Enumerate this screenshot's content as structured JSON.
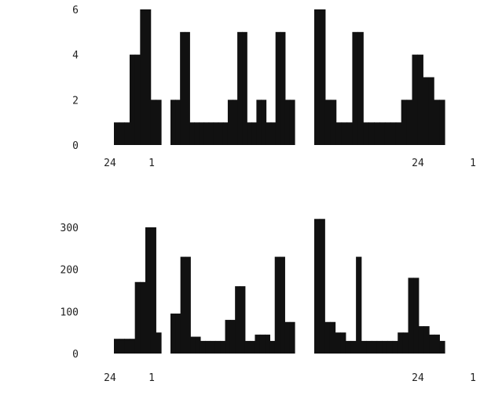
{
  "colors": {
    "bar": "#111111",
    "background": "#ffffff",
    "text": "#222222"
  },
  "chart_data": [
    {
      "type": "bar",
      "title": "",
      "xlabel": "",
      "ylabel": "",
      "ylim": [
        0,
        6
      ],
      "yticks": [
        0,
        1,
        2,
        3,
        4,
        5,
        6
      ],
      "ytick_labels": [
        "0",
        "",
        "2",
        "",
        "4",
        "",
        "6"
      ],
      "groups": [
        {
          "values": [
            1,
            1,
            1,
            4,
            4,
            6,
            6,
            2,
            2
          ]
        },
        {
          "values": [
            2,
            2,
            5,
            5,
            1,
            1,
            1,
            1,
            1,
            1,
            1,
            1,
            2,
            2,
            5,
            5,
            1,
            1,
            2,
            2,
            1,
            1,
            5,
            5,
            2,
            2
          ]
        },
        {
          "values": [
            6,
            6,
            2,
            2,
            1,
            1,
            1,
            5,
            5,
            1,
            1,
            1,
            1,
            1,
            1,
            1,
            2,
            2,
            4,
            4,
            3,
            3,
            2,
            2
          ]
        }
      ],
      "xtick_labels": [
        "24",
        "1",
        "24",
        "1"
      ]
    },
    {
      "type": "bar",
      "title": "",
      "xlabel": "",
      "ylabel": "",
      "ylim": [
        0,
        300
      ],
      "yticks": [
        0,
        100,
        200,
        300
      ],
      "ytick_labels": [
        "0",
        "100",
        "200",
        "300"
      ],
      "groups": [
        {
          "values": [
            35,
            35,
            35,
            35,
            170,
            170,
            300,
            300,
            50
          ]
        },
        {
          "values": [
            95,
            95,
            230,
            230,
            40,
            40,
            30,
            30,
            30,
            30,
            30,
            80,
            80,
            160,
            160,
            30,
            30,
            45,
            45,
            45,
            30,
            230,
            230,
            75,
            75
          ]
        },
        {
          "values": [
            320,
            320,
            75,
            75,
            50,
            50,
            30,
            30,
            230,
            30,
            30,
            30,
            30,
            30,
            30,
            30,
            50,
            50,
            180,
            180,
            65,
            65,
            45,
            45,
            30
          ]
        }
      ],
      "xtick_labels": [
        "24",
        "1",
        "24",
        "1"
      ]
    }
  ]
}
